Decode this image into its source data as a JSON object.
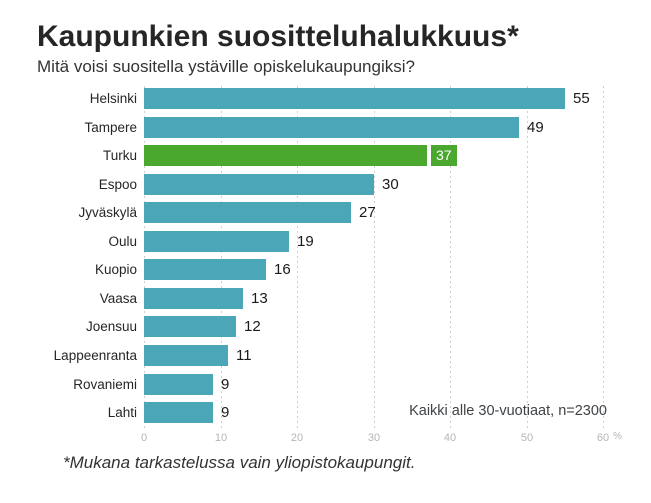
{
  "chart_data": {
    "type": "bar",
    "orientation": "horizontal",
    "title": "Kaupunkien suositteluhalukkuus*",
    "subtitle": "Mitä voisi suositella ystäville opiskelukaupungiksi?",
    "categories": [
      "Helsinki",
      "Tampere",
      "Turku",
      "Espoo",
      "Jyväskylä",
      "Oulu",
      "Kuopio",
      "Vaasa",
      "Joensuu",
      "Lappeenranta",
      "Rovaniemi",
      "Lahti"
    ],
    "values": [
      55,
      49,
      37,
      30,
      27,
      19,
      16,
      13,
      12,
      11,
      9,
      9
    ],
    "highlight_category": "Turku",
    "highlight_value": 37,
    "xlim": [
      0,
      60
    ],
    "x_ticks": [
      "0",
      "10",
      "20",
      "30",
      "40",
      "50",
      "60"
    ],
    "x_unit": "%",
    "grid": "dashed-vertical",
    "legend": "none",
    "bar_color": "#4ba6b8",
    "highlight_color": "#4aa82e",
    "annotation": "Kaikki alle 30-vuotiaat, n=2300"
  },
  "footnote": "*Mukana tarkastelussa vain yliopistokaupungit."
}
